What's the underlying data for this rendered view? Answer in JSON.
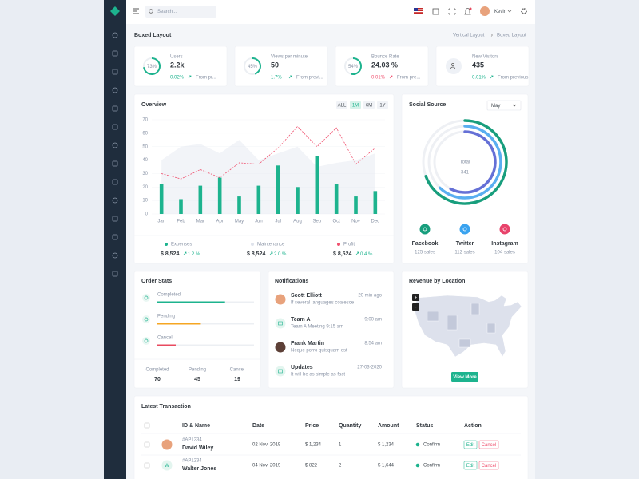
{
  "topbar": {
    "search_placeholder": "Search...",
    "user": "Kevin"
  },
  "page": {
    "title": "Boxed Layout",
    "breadcrumb": [
      "Vertical Layout",
      "Boxed Layout"
    ]
  },
  "stats": [
    {
      "label": "Users",
      "value": "2.2k",
      "ring": 73,
      "ring_label": "73%",
      "change": "0.02%",
      "trend": "up",
      "note": "From pr..."
    },
    {
      "label": "Views per minute",
      "value": "50",
      "ring": 45,
      "ring_label": "45%",
      "change": "1.7%",
      "trend": "up",
      "note": "From previ..."
    },
    {
      "label": "Bounce Rate",
      "value": "24.03 %",
      "ring": 54,
      "ring_label": "54%",
      "change": "0.01%",
      "trend": "down",
      "note": "From pre..."
    },
    {
      "label": "New Visitors",
      "value": "435",
      "change": "0.01%",
      "trend": "up",
      "note": "From previous"
    }
  ],
  "chart_data": [
    {
      "type": "bar",
      "title": "Overview",
      "ranges": [
        "ALL",
        "1M",
        "6M",
        "1Y"
      ],
      "active_range": 1,
      "categories": [
        "Jan",
        "Feb",
        "Mar",
        "Apr",
        "May",
        "Jun",
        "Jul",
        "Aug",
        "Sep",
        "Oct",
        "Nov",
        "Dec"
      ],
      "ylim": [
        0,
        70
      ],
      "yticks": [
        0,
        10,
        20,
        30,
        40,
        50,
        60,
        70
      ],
      "grid": true,
      "series": [
        {
          "name": "Expenses",
          "type": "bar",
          "color": "#1db38e",
          "values": [
            22,
            11,
            21,
            27,
            13,
            21,
            36,
            20,
            43,
            22,
            13,
            17
          ],
          "total": "$ 8,524",
          "change": "1.2 %"
        },
        {
          "name": "Maintenance",
          "type": "area",
          "color": "#e3e7f0",
          "values": [
            40,
            50,
            52,
            45,
            55,
            40,
            45,
            50,
            35,
            38,
            40,
            45
          ],
          "total": "$ 8,524",
          "change": "2.0 %"
        },
        {
          "name": "Profit",
          "type": "line",
          "color": "#f0506e",
          "values": [
            30,
            26,
            33,
            27,
            38,
            37,
            49,
            65,
            50,
            64,
            37,
            49
          ],
          "total": "$ 8,524",
          "change": "0.4 %"
        }
      ]
    },
    {
      "type": "radial_bar",
      "title": "Social Source",
      "period": "May",
      "total_label": "Total",
      "total": 341,
      "xlim": [
        0,
        180
      ],
      "categories": [
        "Facebook",
        "Twitter",
        "Instagram"
      ],
      "values": [
        125,
        112,
        104
      ],
      "value_labels": [
        "125 sales",
        "112 sales",
        "104 sales"
      ],
      "colors": [
        "#189e7d",
        "#5aaef0",
        "#6570d6"
      ],
      "icon_colors": [
        "#189e7d",
        "#3aa3ef",
        "#e8436b"
      ]
    }
  ],
  "order_stats": {
    "title": "Order Stats",
    "xlim": [
      0,
      100
    ],
    "items": [
      {
        "label": "Completed",
        "count": 70,
        "color": "#1db38e"
      },
      {
        "label": "Pending",
        "count": 45,
        "color": "#f5a623"
      },
      {
        "label": "Cancel",
        "count": 19,
        "color": "#e84a5f"
      }
    ]
  },
  "notifications": {
    "title": "Notifications",
    "items": [
      {
        "name": "Scott Elliott",
        "text": "If several languages coalesce",
        "time": "20 min ago",
        "avatar": "photo"
      },
      {
        "name": "Team A",
        "text": "Team A Meeting 9:15 am",
        "time": "9:00 am",
        "avatar": "icon"
      },
      {
        "name": "Frank Martin",
        "text": "Neque porro quisquam est",
        "time": "8:54 am",
        "avatar": "photo"
      },
      {
        "name": "Updates",
        "text": "It will be as simple as fact",
        "time": "27-03-2020",
        "avatar": "icon"
      }
    ]
  },
  "revenue": {
    "title": "Revenue by Location",
    "zoom_in": "+",
    "zoom_out": "-",
    "button": "View More"
  },
  "transactions": {
    "title": "Latest Transaction",
    "headers": [
      "ID & Name",
      "Date",
      "Price",
      "Quantity",
      "Amount",
      "Status",
      "Action"
    ],
    "rows": [
      {
        "id": "#AP1234",
        "name": "David Wiley",
        "avatar": "photo",
        "date": "02 Nov, 2019",
        "price": "$ 1,234",
        "quantity": "1",
        "amount": "$ 1,234",
        "status": "Confirm",
        "edit": "Edit",
        "cancel": "Cancel"
      },
      {
        "id": "#AP1234",
        "name": "Walter Jones",
        "initial": "W",
        "date": "04 Nov, 2019",
        "price": "$ 822",
        "quantity": "2",
        "amount": "$ 1,644",
        "status": "Confirm",
        "edit": "Edit",
        "cancel": "Cancel"
      }
    ]
  }
}
